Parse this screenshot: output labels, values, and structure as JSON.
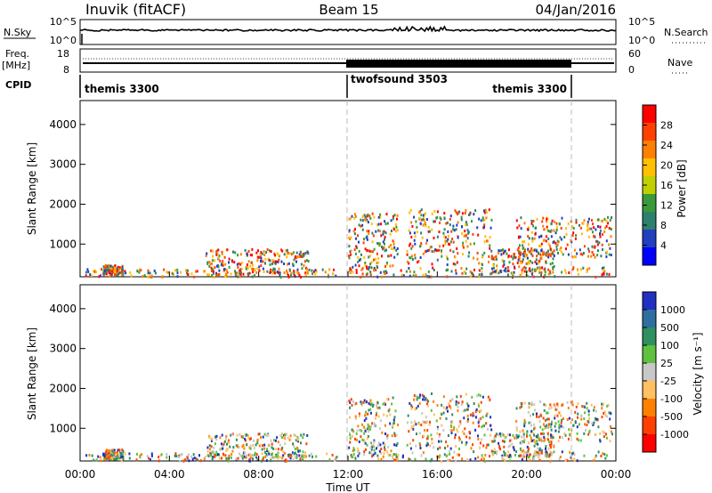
{
  "header": {
    "station": "Inuvik (fitACF)",
    "beam": "Beam 15",
    "date": "04/Jan/2016"
  },
  "panel_labels": {
    "nsky": "N.Sky",
    "nsearch": "N.Search",
    "freq_top": "Freq.",
    "freq_unit": "[MHz]",
    "nave": "Nave",
    "cpid": "CPID"
  },
  "chart_data": [
    {
      "type": "line",
      "name": "noise",
      "y_left_ticks": [
        "10^5",
        "10^0"
      ],
      "y_right_ticks": [
        "10^5",
        "10^0"
      ],
      "x": [
        "00:00",
        "24:00"
      ]
    },
    {
      "type": "line",
      "name": "freq-nave",
      "y_left_ticks": [
        "18",
        "8"
      ],
      "y_right_ticks": [
        "60",
        "0"
      ],
      "ylim_left": [
        8,
        18
      ],
      "ylim_right": [
        0,
        60
      ]
    },
    {
      "type": "table",
      "name": "cpid",
      "segments": [
        {
          "label": "themis 3300",
          "start_hour": 0,
          "end_hour": 12
        },
        {
          "label": "twofsound 3503",
          "start_hour": 12,
          "end_hour": 22
        },
        {
          "label": "themis 3300",
          "start_hour": 22,
          "end_hour": 24
        }
      ]
    },
    {
      "type": "heatmap",
      "name": "power",
      "ylabel": "Slant Range [km]",
      "yticks": [
        1000,
        2000,
        3000,
        4000
      ],
      "ylim": [
        180,
        4600
      ],
      "xlim_hours": [
        0,
        24
      ],
      "colorbar_label": "Power [dB]",
      "colorbar_ticks": [
        "28",
        "24",
        "20",
        "16",
        "12",
        "8",
        "4"
      ],
      "colorbar_colors": [
        "#ff0000",
        "#ff4000",
        "#ff7f00",
        "#ffc000",
        "#bfd000",
        "#3a9a3a",
        "#2f7f6f",
        "#2040c0",
        "#0000ff"
      ]
    },
    {
      "type": "heatmap",
      "name": "velocity",
      "ylabel": "Slant Range [km]",
      "yticks": [
        1000,
        2000,
        3000,
        4000
      ],
      "ylim": [
        180,
        4600
      ],
      "xlim_hours": [
        0,
        24
      ],
      "colorbar_label": "Velocity [m s⁻¹]",
      "colorbar_ticks": [
        "1000",
        "500",
        "100",
        "25",
        "-25",
        "-100",
        "-500",
        "-1000"
      ],
      "colorbar_colors": [
        "#2030c0",
        "#2f6fa0",
        "#2f8f60",
        "#60c040",
        "#c8c8c8",
        "#ffc060",
        "#ff8000",
        "#ff4000",
        "#ff0000"
      ]
    }
  ],
  "x_axis": {
    "ticks": [
      "00:00",
      "04:00",
      "08:00",
      "12:00",
      "16:00",
      "20:00",
      "00:00"
    ],
    "label": "Time UT"
  }
}
